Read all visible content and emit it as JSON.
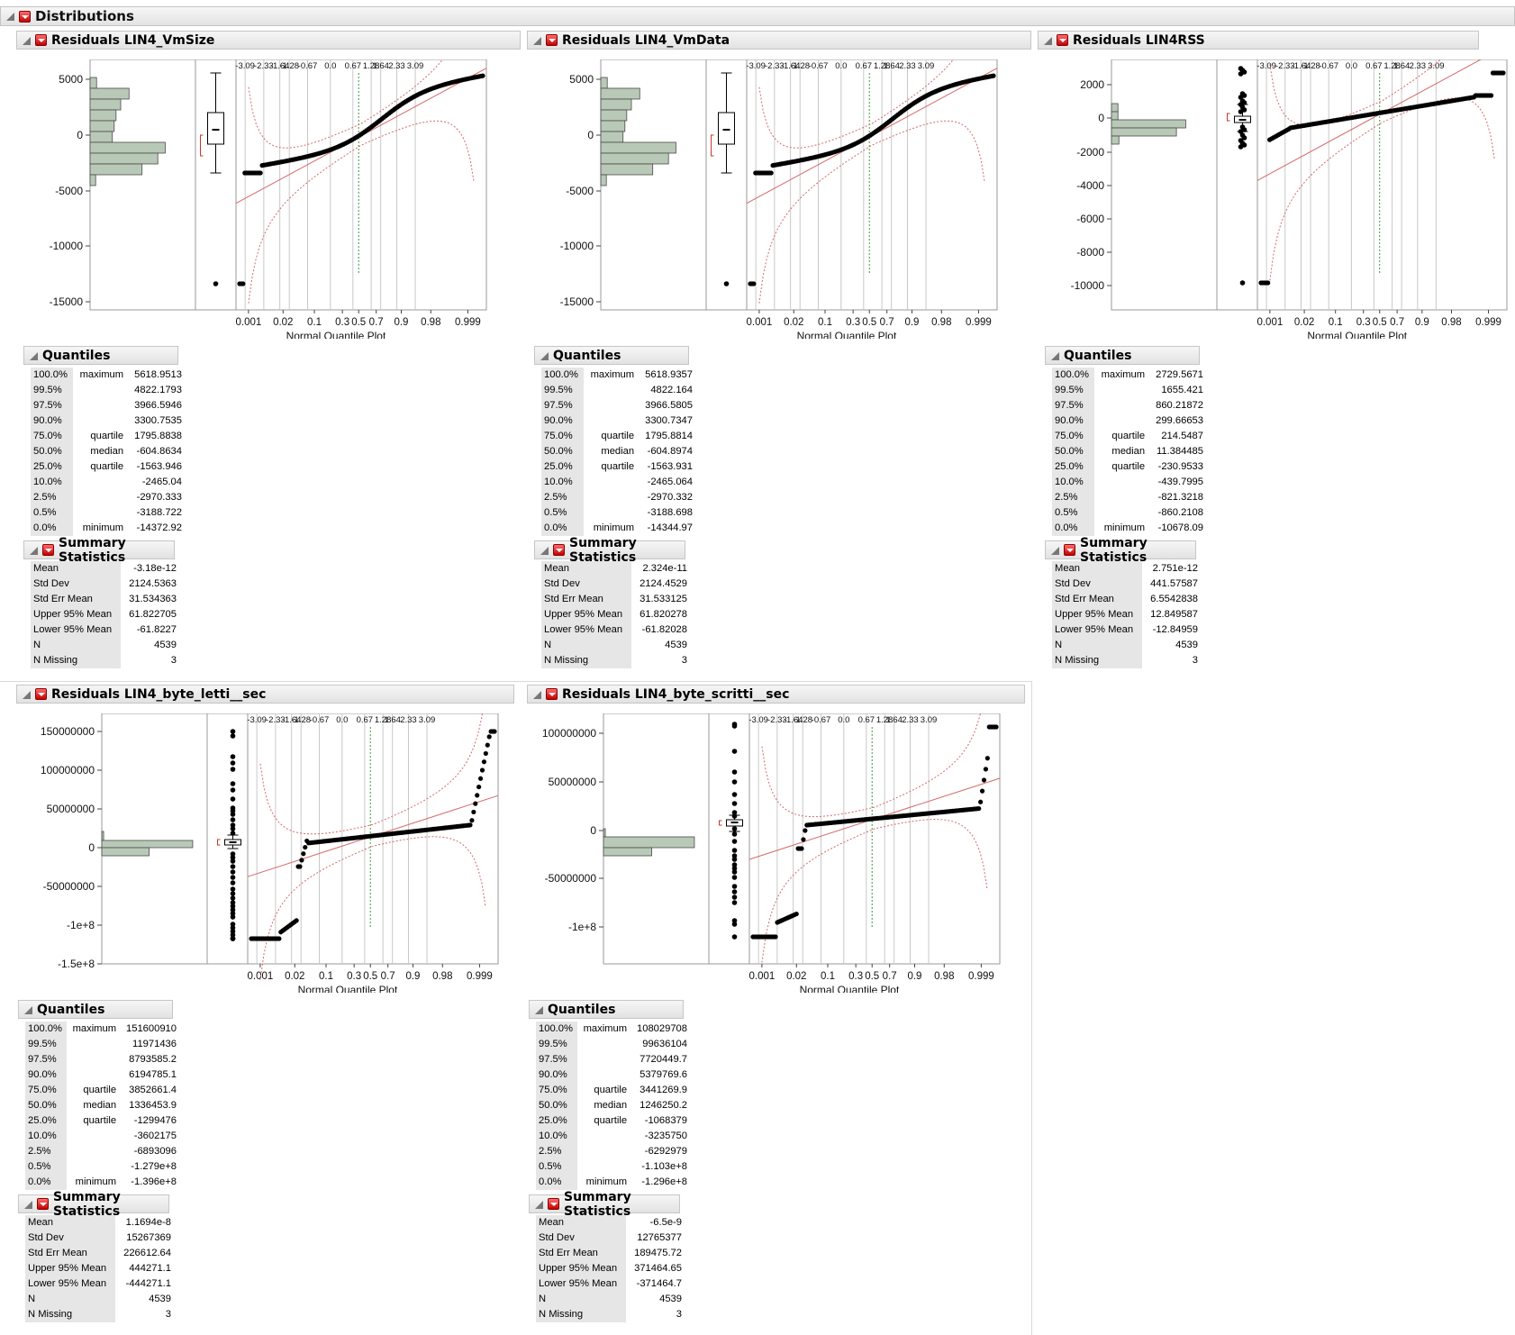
{
  "report": {
    "title": "Distributions"
  },
  "panel_titles": {
    "quantiles": "Quantiles",
    "summary": "Summary Statistics",
    "plot_x_label": "Normal Quantile Plot"
  },
  "nqp_top_ticks": [
    "-3.09",
    "-2.33",
    "-1.64",
    "-1.28",
    "-0.67",
    "0.0",
    "0.67",
    "1.28",
    "1.64",
    "2.33",
    "3.09"
  ],
  "nqp_bottom_ticks": [
    "0.001",
    "0.02",
    "0.1",
    "0.3",
    "0.5",
    "0.7",
    "0.9",
    "0.98",
    "0.999"
  ],
  "quantile_levels": [
    [
      "100.0%",
      "maximum"
    ],
    [
      "99.5%",
      ""
    ],
    [
      "97.5%",
      ""
    ],
    [
      "90.0%",
      ""
    ],
    [
      "75.0%",
      "quartile"
    ],
    [
      "50.0%",
      "median"
    ],
    [
      "25.0%",
      "quartile"
    ],
    [
      "10.0%",
      ""
    ],
    [
      "2.5%",
      ""
    ],
    [
      "0.5%",
      ""
    ],
    [
      "0.0%",
      "minimum"
    ]
  ],
  "summary_labels": [
    "Mean",
    "Std Dev",
    "Std Err Mean",
    "Upper 95% Mean",
    "Lower 95% Mean",
    "N",
    "N Missing"
  ],
  "colors": {
    "histogram": "#b9c9b7",
    "fit_line": "#d46a6a",
    "median_line": "#3a9a3a",
    "points": "#000000"
  },
  "distributions": [
    {
      "title": "Residuals LIN4_VmSize",
      "y_ticks": [
        "5000",
        "0",
        "-5000",
        "-10000",
        "-15000"
      ],
      "quantiles": [
        "5618.9513",
        "4822.1793",
        "3966.5946",
        "3300.7535",
        "1795.8838",
        "-604.8634",
        "-1563.946",
        "-2465.04",
        "-2970.333",
        "-3188.722",
        "-14372.92"
      ],
      "summary": [
        "-3.18e-12",
        "2124.5363",
        "31.534363",
        "61.822705",
        "-61.8227",
        "4539",
        "3"
      ]
    },
    {
      "title": "Residuals LIN4_VmData",
      "y_ticks": [
        "5000",
        "0",
        "-5000",
        "-10000",
        "-15000"
      ],
      "quantiles": [
        "5618.9357",
        "4822.164",
        "3966.5805",
        "3300.7347",
        "1795.8814",
        "-604.8974",
        "-1563.931",
        "-2465.064",
        "-2970.332",
        "-3188.698",
        "-14344.97"
      ],
      "summary": [
        "2.324e-11",
        "2124.4529",
        "31.533125",
        "61.820278",
        "-61.82028",
        "4539",
        "3"
      ]
    },
    {
      "title": "Residuals LIN4RSS",
      "y_ticks": [
        "2000",
        "0",
        "-2000",
        "-4000",
        "-6000",
        "-8000",
        "-10000"
      ],
      "quantiles": [
        "2729.5671",
        "1655.421",
        "860.21872",
        "299.66653",
        "214.5487",
        "11.384485",
        "-230.9533",
        "-439.7995",
        "-821.3218",
        "-860.2108",
        "-10678.09"
      ],
      "summary": [
        "2.751e-12",
        "441.57587",
        "6.5542838",
        "12.849587",
        "-12.84959",
        "4539",
        "3"
      ]
    },
    {
      "title": "Residuals LIN4_byte_letti__sec",
      "y_ticks": [
        "150000000",
        "100000000",
        "50000000",
        "0",
        "-50000000",
        "-1e+8",
        "-1.5e+8"
      ],
      "quantiles": [
        "151600910",
        "11971436",
        "8793585.2",
        "6194785.1",
        "3852661.4",
        "1336453.9",
        "-1299476",
        "-3602175",
        "-6893096",
        "-1.279e+8",
        "-1.396e+8"
      ],
      "summary": [
        "1.1694e-8",
        "15267369",
        "226612.64",
        "444271.1",
        "-444271.1",
        "4539",
        "3"
      ]
    },
    {
      "title": "Residuals LIN4_byte_scritti__sec",
      "y_ticks": [
        "100000000",
        "50000000",
        "0",
        "-50000000",
        "-1e+8"
      ],
      "quantiles": [
        "108029708",
        "99636104",
        "7720449.7",
        "5379769.6",
        "3441269.9",
        "1246250.2",
        "-1068379",
        "-3235750",
        "-6292979",
        "-1.103e+8",
        "-1.296e+8"
      ],
      "summary": [
        "-6.5e-9",
        "12765377",
        "189475.72",
        "371464.65",
        "-371464.7",
        "4539",
        "3"
      ]
    }
  ]
}
